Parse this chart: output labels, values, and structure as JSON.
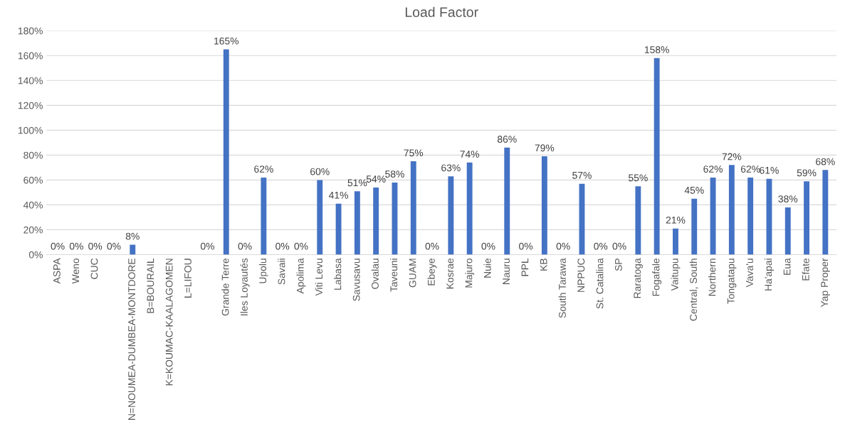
{
  "chart_data": {
    "type": "bar",
    "title": "Load Factor",
    "categories": [
      "ASPA",
      "Weno",
      "CUC",
      null,
      "N=NOUMEA-DUMBEA-MONTDORE",
      "B=BOURAIL",
      "K=KOUMAC-KAALAGOMEN",
      "L=LIFOU",
      null,
      "Grande Terre",
      "Iles Loyautés",
      "Upolu",
      "Savaii",
      "Apolima",
      "Viti Levu",
      "Labasa",
      "Savusavu",
      "Ovalau",
      "Taveuni",
      "GUAM",
      "Ebeye",
      "Kosrae",
      "Majuro",
      "Nuie",
      "Nauru",
      "PPL",
      "KB",
      "South Tarawa",
      "NPPUC",
      "St. Catalina",
      "SP",
      "Raratoga",
      "Fogafale",
      "Vaitupu",
      "Central, South",
      "Northern",
      "Tongatapu",
      "Vava'u",
      "Ha'apai",
      "Eua",
      "Efate",
      "Yap Proper"
    ],
    "values": [
      0,
      0,
      0,
      0,
      8,
      null,
      null,
      null,
      0,
      165,
      0,
      62,
      0,
      0,
      60,
      41,
      51,
      54,
      58,
      75,
      0,
      63,
      74,
      0,
      86,
      0,
      79,
      0,
      57,
      0,
      0,
      55,
      158,
      21,
      45,
      62,
      72,
      62,
      61,
      38,
      59,
      68
    ],
    "value_labels": [
      "0%",
      "0%",
      "0%",
      "0%",
      "8%",
      null,
      null,
      null,
      "0%",
      "165%",
      "0%",
      "62%",
      "0%",
      "0%",
      "60%",
      "41%",
      "51%",
      "54%",
      "58%",
      "75%",
      "0%",
      "63%",
      "74%",
      "0%",
      "86%",
      "0%",
      "79%",
      "0%",
      "57%",
      "0%",
      "0%",
      "55%",
      "158%",
      "21%",
      "45%",
      "62%",
      "72%",
      "62%",
      "61%",
      "38%",
      "59%",
      "68%"
    ],
    "color": "#4472c4",
    "ylim": [
      0,
      180
    ],
    "yticks": [
      {
        "value": 0,
        "label": "0%"
      },
      {
        "value": 20,
        "label": "20%"
      },
      {
        "value": 40,
        "label": "40%"
      },
      {
        "value": 60,
        "label": "60%"
      },
      {
        "value": 80,
        "label": "80%"
      },
      {
        "value": 100,
        "label": "100%"
      },
      {
        "value": 120,
        "label": "120%"
      },
      {
        "value": 140,
        "label": "140%"
      },
      {
        "value": 160,
        "label": "160%"
      },
      {
        "value": 180,
        "label": "180%"
      }
    ],
    "grid": "y"
  }
}
